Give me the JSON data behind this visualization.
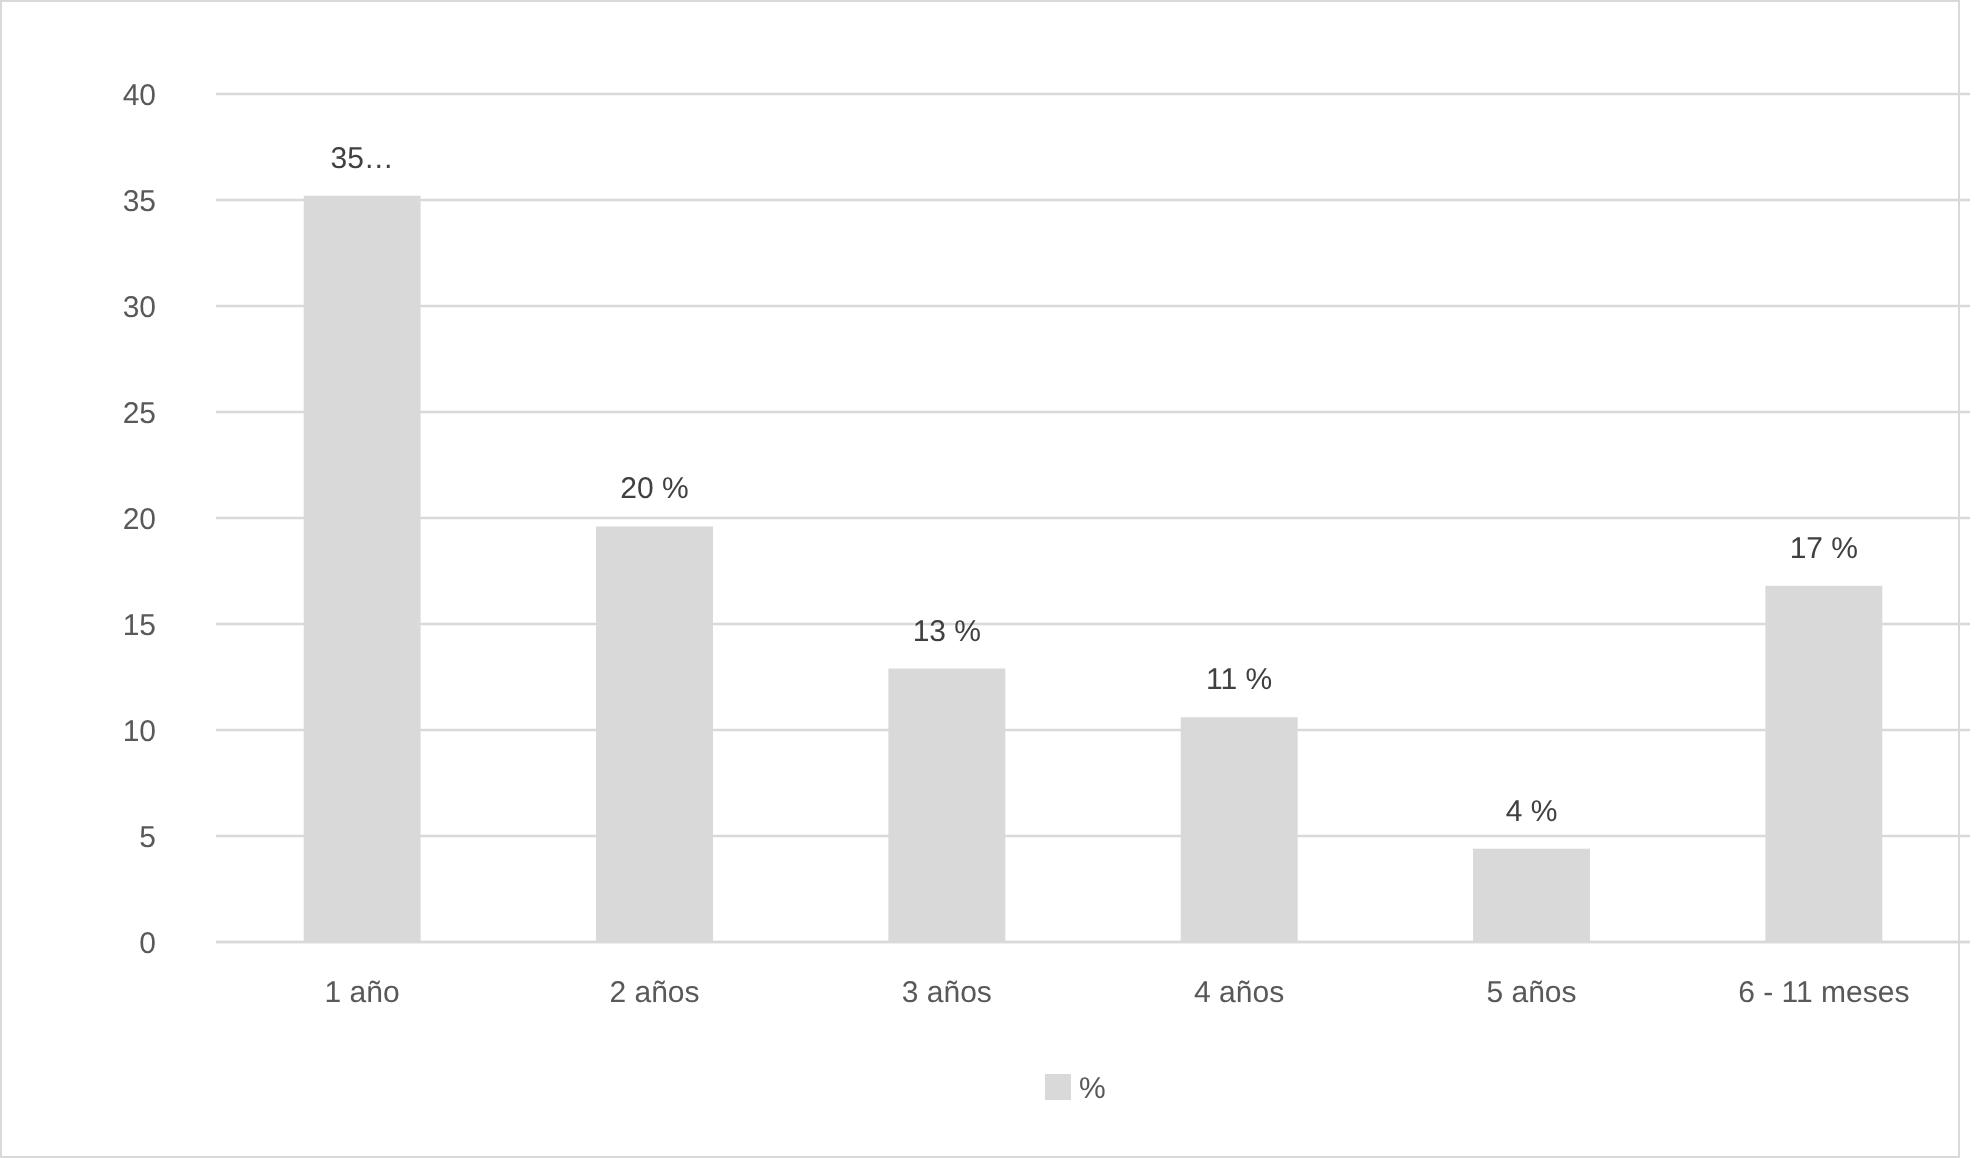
{
  "chart_data": {
    "type": "bar",
    "categories": [
      "1 año",
      "2 años",
      "3 años",
      "4 años",
      "5 años",
      "6 - 11 meses"
    ],
    "series": [
      {
        "name": "%",
        "color": "#d9d9d9",
        "values": [
          35.2,
          19.6,
          12.9,
          10.6,
          4.4,
          16.8
        ],
        "value_labels": [
          "35…",
          "20 %",
          "13 %",
          "11 %",
          "4 %",
          "17 %"
        ]
      }
    ],
    "ylim": [
      0,
      40
    ],
    "yticks": [
      0,
      5,
      10,
      15,
      20,
      25,
      30,
      35,
      40
    ],
    "grid": "y",
    "legend": "bottom"
  }
}
